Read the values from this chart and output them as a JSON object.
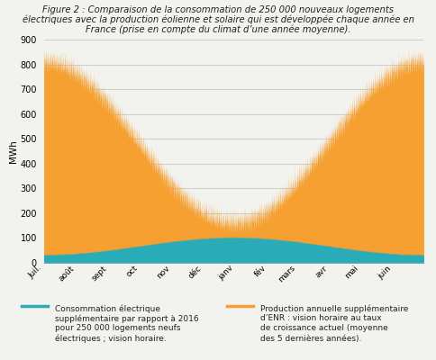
{
  "title_line1": "Figure 2 : Comparaison de la consommation de 250 000 nouveaux logements",
  "title_line2": "électriques avec la production éolienne et solaire qui est développée chaque année en",
  "title_line3": "France (prise en compte du climat d’une année moyenne).",
  "ylabel": "MWh",
  "xtick_labels": [
    "Juil.",
    "août",
    "sept",
    "oct",
    "nov",
    "déc",
    "janv",
    "fév",
    "mars",
    "avr",
    "mai",
    "juin"
  ],
  "ytick_values": [
    0,
    100,
    200,
    300,
    400,
    500,
    600,
    700,
    800,
    900
  ],
  "ylim": [
    0,
    900
  ],
  "orange_color": "#F5A030",
  "teal_color": "#2AABB8",
  "bg_color": "#F2F2EE",
  "legend1_text": "Consommation électrique\nsupplémentaire par rapport à 2016\npour 250 000 logements neufs\nélectriques ; vision horaire.",
  "legend2_text": "Production annuelle supplémentaire\nd’ENR : vision horaire au taux\nde croissance actuel (moyenne\ndes 5 dernières années).",
  "n_points": 8760,
  "grid_color": "#C8C8C8",
  "months_hours": [
    744,
    744,
    720,
    744,
    720,
    744,
    744,
    672,
    744,
    720,
    744,
    720
  ]
}
